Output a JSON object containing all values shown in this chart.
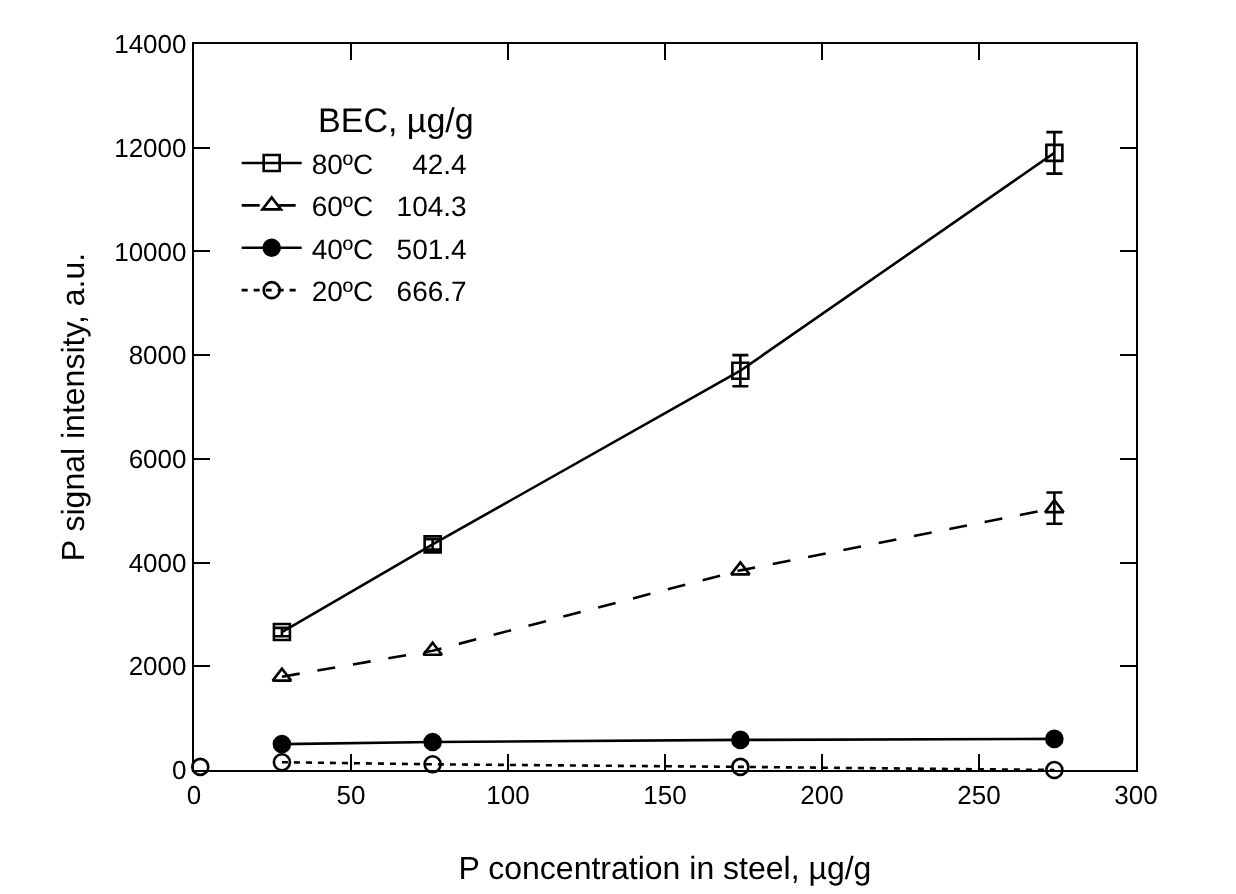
{
  "chart_data": {
    "type": "line",
    "xlabel": "P concentration in steel, µg/g",
    "ylabel": "P signal intensity, a.u.",
    "legend_title": "BEC, µg/g",
    "legend": "top left",
    "grid": false,
    "xlim": [
      0,
      300
    ],
    "xticks": [
      0,
      50,
      100,
      150,
      200,
      250,
      300
    ],
    "ylim": [
      0,
      14000
    ],
    "yticks": [
      0,
      2000,
      4000,
      6000,
      8000,
      10000,
      12000,
      14000
    ],
    "series": [
      {
        "name": "80ºC     42.4",
        "color": "#000000",
        "marker": "square",
        "line_style": "solid",
        "x": [
          28,
          76,
          174,
          274
        ],
        "values": [
          2660,
          4350,
          7700,
          11900
        ],
        "errors": [
          80,
          100,
          300,
          400
        ]
      },
      {
        "name": "60ºC   104.3",
        "color": "#000000",
        "marker": "triangle",
        "line_style": "dashed",
        "x": [
          28,
          76,
          174,
          274
        ],
        "values": [
          1800,
          2300,
          3850,
          5050
        ],
        "errors": [
          null,
          null,
          null,
          300
        ]
      },
      {
        "name": "40ºC   501.4",
        "color": "#000000",
        "marker": "circle",
        "line_style": "solid",
        "x": [
          28,
          76,
          174,
          274
        ],
        "values": [
          500,
          540,
          580,
          600
        ]
      },
      {
        "name": "20ºC   666.7",
        "color": "#000000",
        "marker": "circle",
        "line_style": "dotted",
        "x": [
          28,
          76,
          174,
          274
        ],
        "values": [
          150,
          110,
          60,
          0
        ]
      },
      {
        "type": "scatter",
        "color": "#000000",
        "marker": "circle",
        "x": [
          2
        ],
        "values": [
          60
        ]
      }
    ]
  }
}
